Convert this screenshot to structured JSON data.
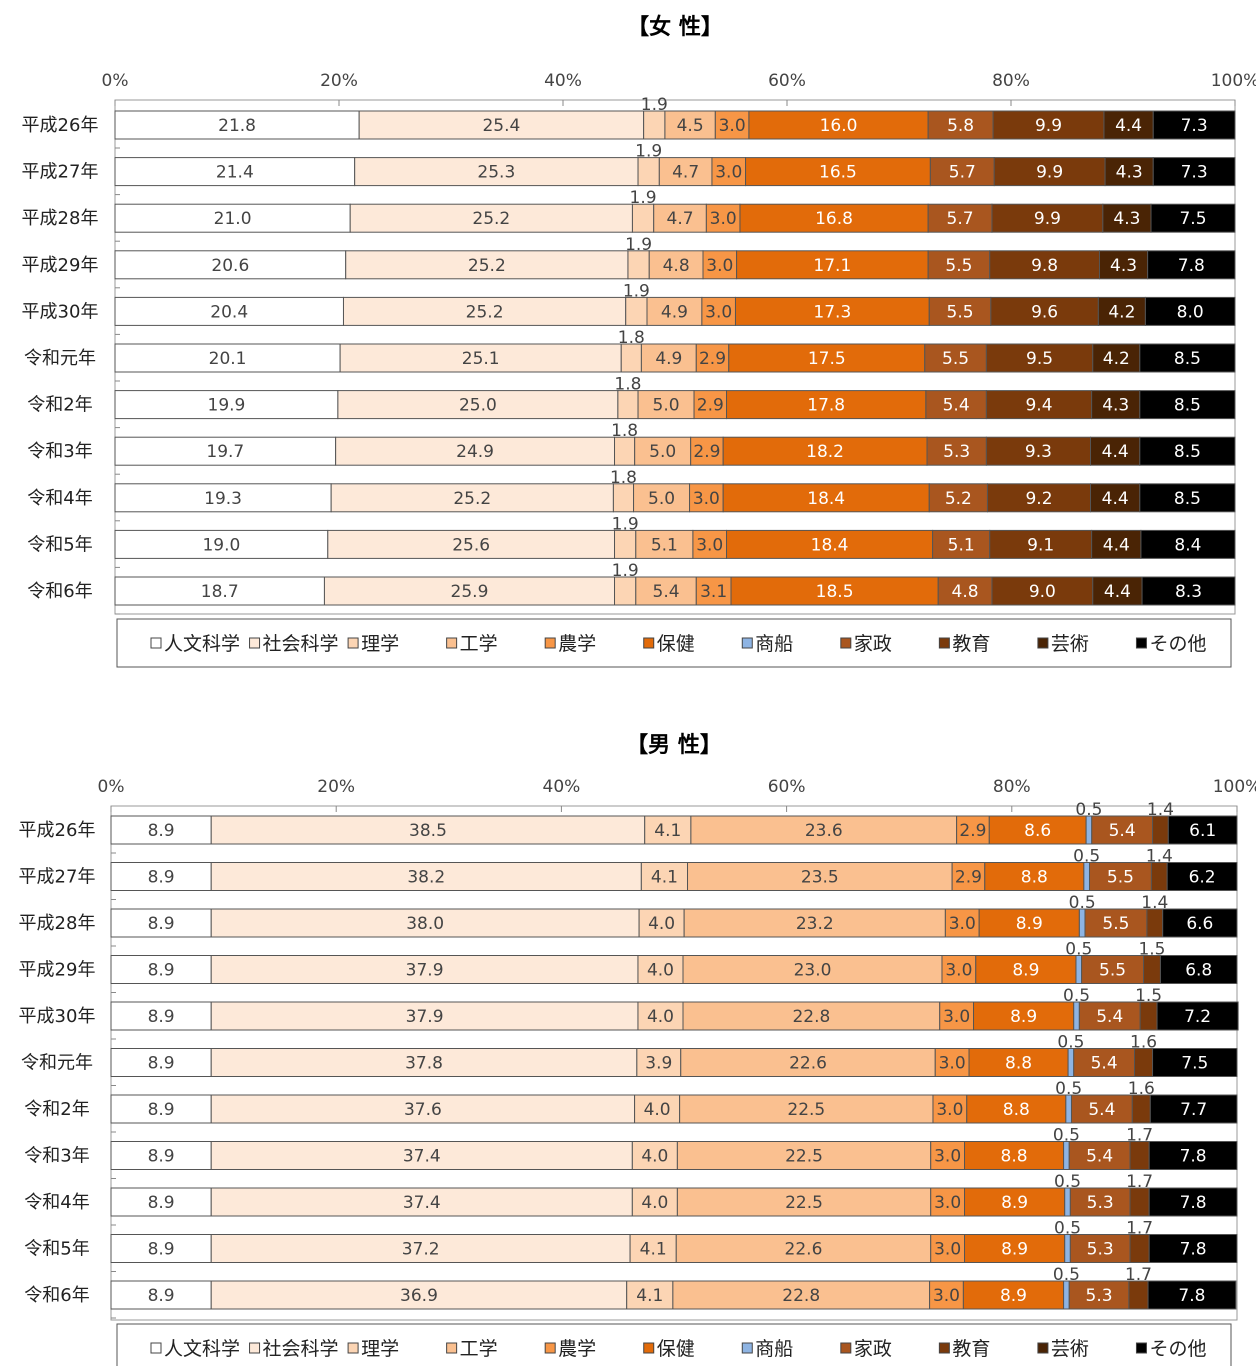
{
  "chart_data": [
    {
      "type": "bar",
      "orientation": "horizontal",
      "stacked": true,
      "title": "【女 性】",
      "x_tick_labels": [
        "0%",
        "20%",
        "40%",
        "60%",
        "80%",
        "100%"
      ],
      "xlim": [
        0,
        100
      ],
      "legend_position": "bottom",
      "categories": [
        "平成26年",
        "平成27年",
        "平成28年",
        "平成29年",
        "平成30年",
        "令和元年",
        "令和2年",
        "令和3年",
        "令和4年",
        "令和5年",
        "令和6年"
      ],
      "series": [
        {
          "name": "人文科学",
          "color": "#ffffff",
          "values": [
            21.8,
            21.4,
            21.0,
            20.6,
            20.4,
            20.1,
            19.9,
            19.7,
            19.3,
            19.0,
            18.7
          ]
        },
        {
          "name": "社会科学",
          "color": "#fde9d9",
          "values": [
            25.4,
            25.3,
            25.2,
            25.2,
            25.2,
            25.1,
            25.0,
            24.9,
            25.2,
            25.6,
            25.9
          ]
        },
        {
          "name": "理学",
          "color": "#fcd5b4",
          "values": [
            1.9,
            1.9,
            1.9,
            1.9,
            1.9,
            1.8,
            1.8,
            1.8,
            1.8,
            1.9,
            1.9
          ]
        },
        {
          "name": "工学",
          "color": "#fac090",
          "values": [
            4.5,
            4.7,
            4.7,
            4.8,
            4.9,
            4.9,
            5.0,
            5.0,
            5.0,
            5.1,
            5.4
          ]
        },
        {
          "name": "農学",
          "color": "#f79646",
          "values": [
            3.0,
            3.0,
            3.0,
            3.0,
            3.0,
            2.9,
            2.9,
            2.9,
            3.0,
            3.0,
            3.1
          ]
        },
        {
          "name": "保健",
          "color": "#e26b0a",
          "values": [
            16.0,
            16.5,
            16.8,
            17.1,
            17.3,
            17.5,
            17.8,
            18.2,
            18.4,
            18.4,
            18.5
          ]
        },
        {
          "name": "商船",
          "color": "#8eb4e3",
          "values": [
            0,
            0,
            0,
            0,
            0,
            0,
            0,
            0,
            0,
            0,
            0
          ]
        },
        {
          "name": "家政",
          "color": "#a9561f",
          "values": [
            5.8,
            5.7,
            5.7,
            5.5,
            5.5,
            5.5,
            5.4,
            5.3,
            5.2,
            5.1,
            4.8
          ]
        },
        {
          "name": "教育",
          "color": "#7a3a0c",
          "values": [
            9.9,
            9.9,
            9.9,
            9.8,
            9.6,
            9.5,
            9.4,
            9.3,
            9.2,
            9.1,
            9.0
          ]
        },
        {
          "name": "芸術",
          "color": "#4a2405",
          "values": [
            4.4,
            4.3,
            4.3,
            4.3,
            4.2,
            4.2,
            4.3,
            4.4,
            4.4,
            4.4,
            4.4
          ]
        },
        {
          "name": "その他",
          "color": "#000000",
          "values": [
            7.3,
            7.3,
            7.5,
            7.8,
            8.0,
            8.5,
            8.5,
            8.5,
            8.5,
            8.4,
            8.3
          ]
        }
      ]
    },
    {
      "type": "bar",
      "orientation": "horizontal",
      "stacked": true,
      "title": "【男 性】",
      "x_tick_labels": [
        "0%",
        "20%",
        "40%",
        "60%",
        "80%",
        "100%"
      ],
      "xlim": [
        0,
        100
      ],
      "legend_position": "bottom",
      "categories": [
        "平成26年",
        "平成27年",
        "平成28年",
        "平成29年",
        "平成30年",
        "令和元年",
        "令和2年",
        "令和3年",
        "令和4年",
        "令和5年",
        "令和6年"
      ],
      "series": [
        {
          "name": "人文科学",
          "color": "#ffffff",
          "values": [
            8.9,
            8.9,
            8.9,
            8.9,
            8.9,
            8.9,
            8.9,
            8.9,
            8.9,
            8.9,
            8.9
          ]
        },
        {
          "name": "社会科学",
          "color": "#fde9d9",
          "values": [
            38.5,
            38.2,
            38.0,
            37.9,
            37.9,
            37.8,
            37.6,
            37.4,
            37.4,
            37.2,
            36.9
          ]
        },
        {
          "name": "理学",
          "color": "#fcd5b4",
          "values": [
            4.1,
            4.1,
            4.0,
            4.0,
            4.0,
            3.9,
            4.0,
            4.0,
            4.0,
            4.1,
            4.1
          ]
        },
        {
          "name": "工学",
          "color": "#fac090",
          "values": [
            23.6,
            23.5,
            23.2,
            23.0,
            22.8,
            22.6,
            22.5,
            22.5,
            22.5,
            22.6,
            22.8
          ]
        },
        {
          "name": "農学",
          "color": "#f79646",
          "values": [
            2.9,
            2.9,
            3.0,
            3.0,
            3.0,
            3.0,
            3.0,
            3.0,
            3.0,
            3.0,
            3.0
          ]
        },
        {
          "name": "保健",
          "color": "#e26b0a",
          "values": [
            8.6,
            8.8,
            8.9,
            8.9,
            8.9,
            8.8,
            8.8,
            8.8,
            8.9,
            8.9,
            8.9
          ]
        },
        {
          "name": "商船",
          "color": "#8eb4e3",
          "values": [
            0.5,
            0.5,
            0.5,
            0.5,
            0.5,
            0.5,
            0.5,
            0.5,
            0.5,
            0.5,
            0.5
          ]
        },
        {
          "name": "家政",
          "color": "#a9561f",
          "values": [
            5.4,
            5.5,
            5.5,
            5.5,
            5.4,
            5.4,
            5.4,
            5.4,
            5.3,
            5.3,
            5.3
          ]
        },
        {
          "name": "教育",
          "color": "#7a3a0c",
          "values": [
            1.4,
            1.4,
            1.4,
            1.5,
            1.5,
            1.6,
            1.6,
            1.7,
            1.7,
            1.7,
            1.7
          ]
        },
        {
          "name": "芸術",
          "color": "#4a2405",
          "values": [
            0,
            0,
            0,
            0,
            0,
            0,
            0,
            0,
            0,
            0,
            0
          ]
        },
        {
          "name": "その他",
          "color": "#000000",
          "values": [
            6.1,
            6.2,
            6.6,
            6.8,
            7.2,
            7.5,
            7.7,
            7.8,
            7.8,
            7.8,
            7.8
          ]
        }
      ]
    }
  ]
}
